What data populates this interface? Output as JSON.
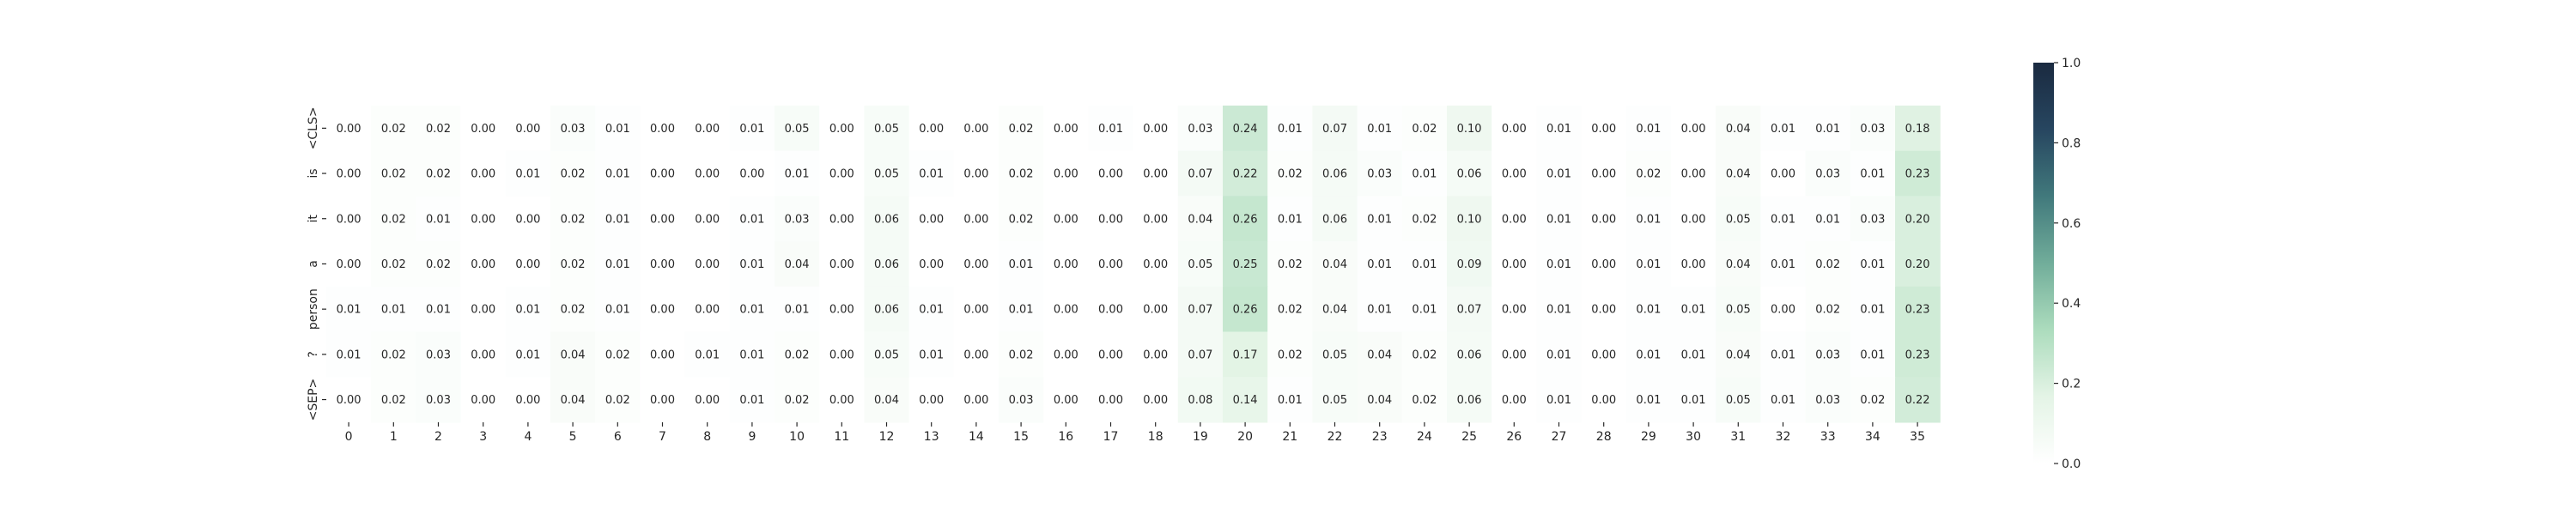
{
  "chart_data": {
    "type": "heatmap",
    "title": "",
    "xlabel": "",
    "ylabel": "",
    "x_categories": [
      "0",
      "1",
      "2",
      "3",
      "4",
      "5",
      "6",
      "7",
      "8",
      "9",
      "10",
      "11",
      "12",
      "13",
      "14",
      "15",
      "16",
      "17",
      "18",
      "19",
      "20",
      "21",
      "22",
      "23",
      "24",
      "25",
      "26",
      "27",
      "28",
      "29",
      "30",
      "31",
      "32",
      "33",
      "34",
      "35"
    ],
    "y_categories": [
      "<CLS>",
      "is",
      "it",
      "a",
      "person",
      "?",
      "<SEP>"
    ],
    "values": [
      [
        0.0,
        0.02,
        0.02,
        0.0,
        0.0,
        0.03,
        0.01,
        0.0,
        0.0,
        0.01,
        0.05,
        0.0,
        0.05,
        0.0,
        0.0,
        0.02,
        0.0,
        0.01,
        0.0,
        0.03,
        0.24,
        0.01,
        0.07,
        0.01,
        0.02,
        0.1,
        0.0,
        0.01,
        0.0,
        0.01,
        0.0,
        0.04,
        0.01,
        0.01,
        0.03,
        0.18
      ],
      [
        0.0,
        0.02,
        0.02,
        0.0,
        0.01,
        0.02,
        0.01,
        0.0,
        0.0,
        0.0,
        0.01,
        0.0,
        0.05,
        0.01,
        0.0,
        0.02,
        0.0,
        0.0,
        0.0,
        0.07,
        0.22,
        0.02,
        0.06,
        0.03,
        0.01,
        0.06,
        0.0,
        0.01,
        0.0,
        0.02,
        0.0,
        0.04,
        0.0,
        0.03,
        0.01,
        0.23
      ],
      [
        0.0,
        0.02,
        0.01,
        0.0,
        0.0,
        0.02,
        0.01,
        0.0,
        0.0,
        0.01,
        0.03,
        0.0,
        0.06,
        0.0,
        0.0,
        0.02,
        0.0,
        0.0,
        0.0,
        0.04,
        0.26,
        0.01,
        0.06,
        0.01,
        0.02,
        0.1,
        0.0,
        0.01,
        0.0,
        0.01,
        0.0,
        0.05,
        0.01,
        0.01,
        0.03,
        0.2
      ],
      [
        0.0,
        0.02,
        0.02,
        0.0,
        0.0,
        0.02,
        0.01,
        0.0,
        0.0,
        0.01,
        0.04,
        0.0,
        0.06,
        0.0,
        0.0,
        0.01,
        0.0,
        0.0,
        0.0,
        0.05,
        0.25,
        0.02,
        0.04,
        0.01,
        0.01,
        0.09,
        0.0,
        0.01,
        0.0,
        0.01,
        0.0,
        0.04,
        0.01,
        0.02,
        0.01,
        0.2
      ],
      [
        0.01,
        0.01,
        0.01,
        0.0,
        0.01,
        0.02,
        0.01,
        0.0,
        0.0,
        0.01,
        0.01,
        0.0,
        0.06,
        0.01,
        0.0,
        0.01,
        0.0,
        0.0,
        0.0,
        0.07,
        0.26,
        0.02,
        0.04,
        0.01,
        0.01,
        0.07,
        0.0,
        0.01,
        0.0,
        0.01,
        0.01,
        0.05,
        0.0,
        0.02,
        0.01,
        0.23
      ],
      [
        0.01,
        0.02,
        0.03,
        0.0,
        0.01,
        0.04,
        0.02,
        0.0,
        0.01,
        0.01,
        0.02,
        0.0,
        0.05,
        0.01,
        0.0,
        0.02,
        0.0,
        0.0,
        0.0,
        0.07,
        0.17,
        0.02,
        0.05,
        0.04,
        0.02,
        0.06,
        0.0,
        0.01,
        0.0,
        0.01,
        0.01,
        0.04,
        0.01,
        0.03,
        0.01,
        0.23
      ],
      [
        0.0,
        0.02,
        0.03,
        0.0,
        0.0,
        0.04,
        0.02,
        0.0,
        0.0,
        0.01,
        0.02,
        0.0,
        0.04,
        0.0,
        0.0,
        0.03,
        0.0,
        0.0,
        0.0,
        0.08,
        0.14,
        0.01,
        0.05,
        0.04,
        0.02,
        0.06,
        0.0,
        0.01,
        0.0,
        0.01,
        0.01,
        0.05,
        0.01,
        0.03,
        0.02,
        0.22
      ]
    ],
    "value_format": "0.00",
    "vmin": 0.0,
    "vmax": 1.0,
    "colormap": [
      "#ffffff",
      "#e4f4e6",
      "#acdcbd",
      "#71ad9a",
      "#41797c",
      "#274660",
      "#1a2a40"
    ],
    "colorbar": {
      "ticks": [
        "0.0",
        "0.2",
        "0.4",
        "0.6",
        "0.8",
        "1.0"
      ],
      "tick_values": [
        0.0,
        0.2,
        0.4,
        0.6,
        0.8,
        1.0
      ]
    },
    "grid": false,
    "legend": "colorbar-right"
  }
}
